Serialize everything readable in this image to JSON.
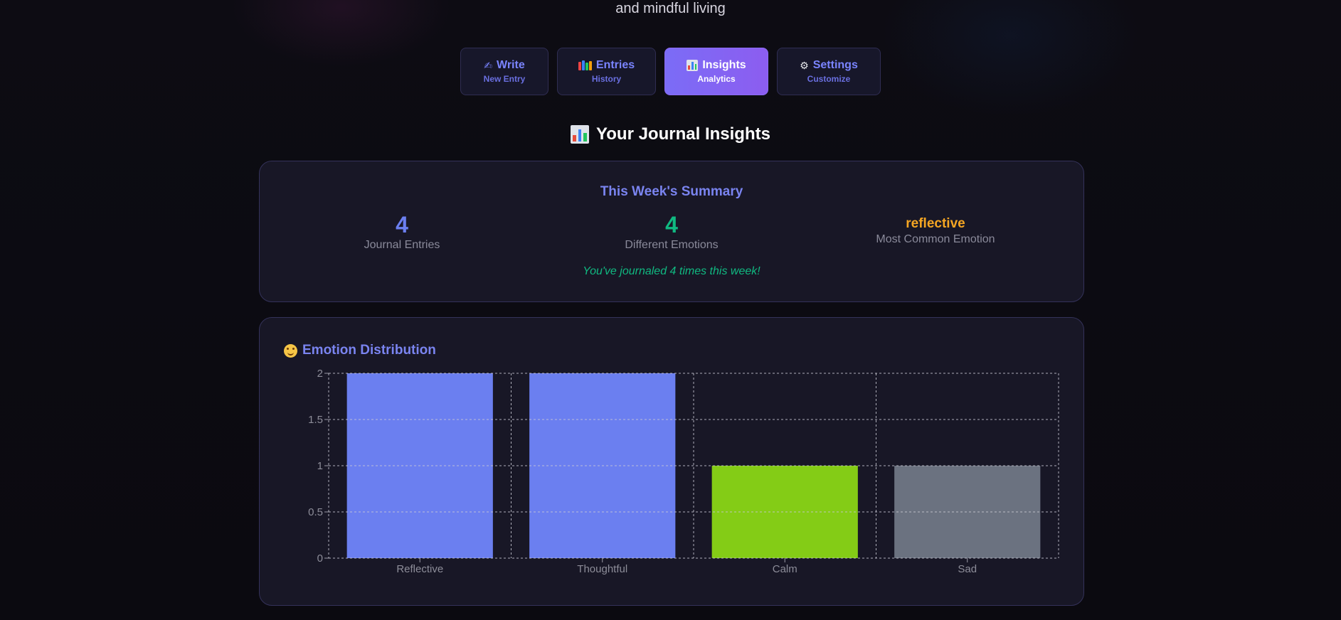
{
  "header": {
    "tagline": "and mindful living"
  },
  "nav": {
    "tabs": [
      {
        "icon": "writing-hand-icon",
        "label": "Write",
        "sub": "New Entry",
        "active": false
      },
      {
        "icon": "books-icon",
        "label": "Entries",
        "sub": "History",
        "active": false
      },
      {
        "icon": "bar-chart-icon",
        "label": "Insights",
        "sub": "Analytics",
        "active": true
      },
      {
        "icon": "gear-icon",
        "label": "Settings",
        "sub": "Customize",
        "active": false
      }
    ]
  },
  "insights": {
    "title": "Your Journal Insights",
    "summary": {
      "heading": "This Week's Summary",
      "entries_value": "4",
      "entries_label": "Journal Entries",
      "emotions_value": "4",
      "emotions_label": "Different Emotions",
      "common_value": "reflective",
      "common_label": "Most Common Emotion",
      "note": "You've journaled 4 times this week!"
    },
    "distribution": {
      "title": "Emotion Distribution"
    }
  },
  "colors": {
    "accent": "#7a84f0",
    "active_tab": "#8c5df0",
    "entries_num": "#6b7ff0",
    "emotions_num": "#10b981",
    "common_emotion": "#f5a623",
    "note": "#10b981"
  },
  "chart_data": {
    "type": "bar",
    "categories": [
      "Reflective",
      "Thoughtful",
      "Calm",
      "Sad"
    ],
    "values": [
      2,
      2,
      1,
      1
    ],
    "colors": [
      "#6b7ff0",
      "#6b7ff0",
      "#84cc16",
      "#6b7280"
    ],
    "ylim": [
      0,
      2
    ],
    "yticks": [
      "0",
      "0.5",
      "1",
      "1.5",
      "2"
    ],
    "grid": true,
    "title": "",
    "xlabel": "",
    "ylabel": ""
  }
}
